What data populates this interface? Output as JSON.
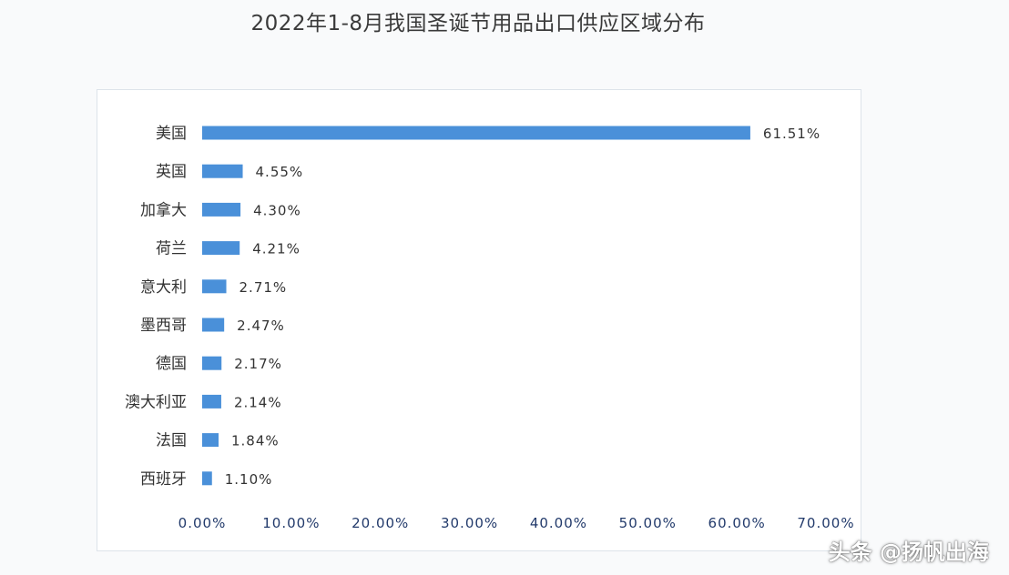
{
  "chart_data": {
    "type": "bar",
    "orientation": "horizontal",
    "title": "2022年1-8月我国圣诞节用品出口供应区域分布",
    "categories": [
      "美国",
      "英国",
      "加拿大",
      "荷兰",
      "意大利",
      "墨西哥",
      "德国",
      "澳大利亚",
      "法国",
      "西班牙"
    ],
    "values": [
      61.51,
      4.55,
      4.3,
      4.21,
      2.71,
      2.47,
      2.17,
      2.14,
      1.84,
      1.1
    ],
    "value_labels": [
      "61.51%",
      "4.55%",
      "4.30%",
      "4.21%",
      "2.71%",
      "2.47%",
      "2.17%",
      "2.14%",
      "1.84%",
      "1.10%"
    ],
    "xlim": [
      0,
      70
    ],
    "x_ticks": [
      "0.00%",
      "10.00%",
      "20.00%",
      "30.00%",
      "40.00%",
      "50.00%",
      "60.00%",
      "70.00%"
    ],
    "xlabel": "",
    "ylabel": "",
    "grid": false,
    "bar_color": "#4a90d9"
  },
  "watermark": "头条 @扬帆出海"
}
